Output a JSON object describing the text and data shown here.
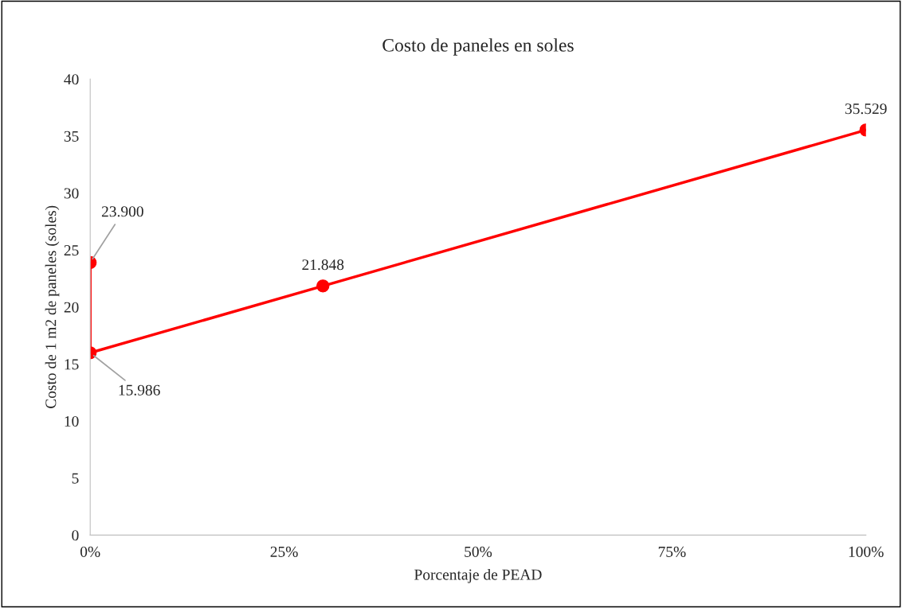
{
  "chart_data": {
    "type": "line",
    "title": "Costo de paneles en soles",
    "xlabel": "Porcentaje de PEAD",
    "ylabel": "Costo de 1 m2 de paneles (soles)",
    "x": [
      0,
      0,
      30,
      100
    ],
    "series": [
      {
        "color": "#ff0000",
        "values": [
          23.9,
          15.986,
          21.848,
          35.529
        ],
        "value_labels": [
          "23.900",
          "15.986",
          "21.848",
          "35.529"
        ]
      }
    ],
    "xlim": [
      0,
      100
    ],
    "xticks": [
      {
        "value": 0,
        "label": "0%"
      },
      {
        "value": 25,
        "label": "25%"
      },
      {
        "value": 50,
        "label": "50%"
      },
      {
        "value": 75,
        "label": "75%"
      },
      {
        "value": 100,
        "label": "100%"
      }
    ],
    "ylim": [
      0,
      40
    ],
    "yticks": [
      0,
      5,
      10,
      15,
      20,
      25,
      30,
      35,
      40
    ],
    "grid": false,
    "legend": false,
    "marker": "circle",
    "line_style": "solid"
  }
}
